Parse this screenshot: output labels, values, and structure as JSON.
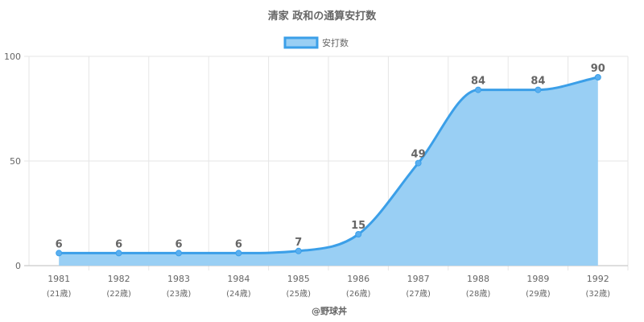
{
  "chart_data": {
    "type": "area",
    "title": "清家 政和の通算安打数",
    "series": [
      {
        "name": "安打数",
        "values": [
          6,
          6,
          6,
          6,
          7,
          15,
          49,
          84,
          84,
          90
        ]
      }
    ],
    "categories": [
      "1981",
      "1982",
      "1983",
      "1984",
      "1985",
      "1986",
      "1987",
      "1988",
      "1989",
      "1992"
    ],
    "category_sublabels": [
      "(21歳)",
      "(22歳)",
      "(23歳)",
      "(24歳)",
      "(25歳)",
      "(26歳)",
      "(27歳)",
      "(28歳)",
      "(29歳)",
      "(32歳)"
    ],
    "ylim": [
      0,
      100
    ],
    "y_ticks": [
      "0",
      "50",
      "100"
    ],
    "y_tick_values": [
      0,
      50,
      100
    ],
    "grid": true,
    "legend_position": "top",
    "colors": {
      "line": "#3b9fe8",
      "fill": "#99cff4",
      "point": "#5aaff0"
    },
    "credit": "@野球丼"
  }
}
